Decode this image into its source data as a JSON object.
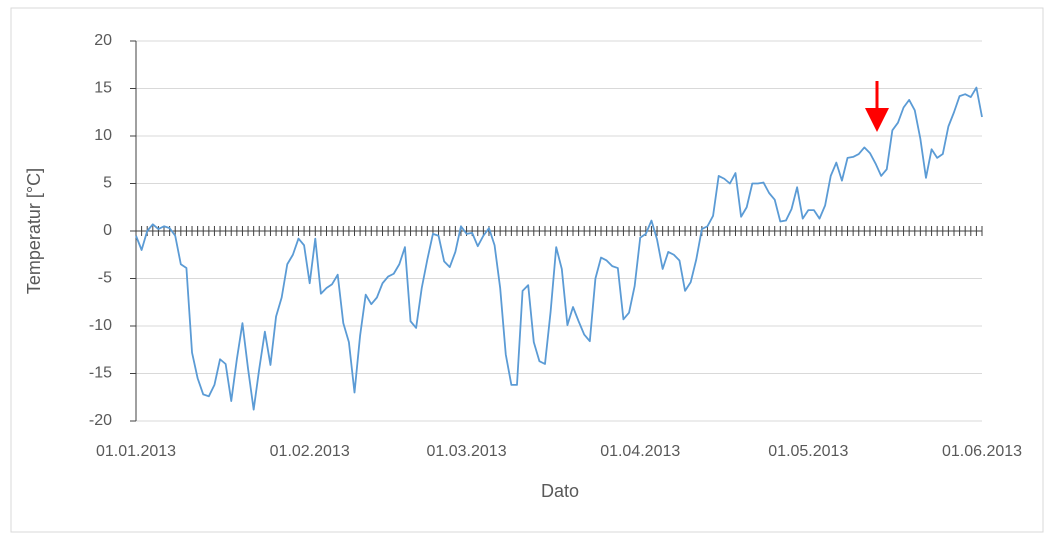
{
  "chart_data": {
    "type": "line",
    "xlabel": "Dato",
    "ylabel": "Temperatur [°C]",
    "categories": [
      "01.01.2013",
      null,
      null,
      null,
      null,
      null,
      null,
      null,
      null,
      null,
      null,
      null,
      null,
      null,
      null,
      null,
      null,
      null,
      null,
      null,
      null,
      null,
      null,
      null,
      null,
      null,
      null,
      null,
      null,
      null,
      null,
      "01.02.2013",
      null,
      null,
      null,
      null,
      null,
      null,
      null,
      null,
      null,
      null,
      null,
      null,
      null,
      null,
      null,
      null,
      null,
      null,
      null,
      null,
      null,
      null,
      null,
      null,
      null,
      null,
      null,
      "01.03.2013",
      null,
      null,
      null,
      null,
      null,
      null,
      null,
      null,
      null,
      null,
      null,
      null,
      null,
      null,
      null,
      null,
      null,
      null,
      null,
      null,
      null,
      null,
      null,
      null,
      null,
      null,
      null,
      null,
      null,
      null,
      "01.04.2013",
      null,
      null,
      null,
      null,
      null,
      null,
      null,
      null,
      null,
      null,
      null,
      null,
      null,
      null,
      null,
      null,
      null,
      null,
      null,
      null,
      null,
      null,
      null,
      null,
      null,
      null,
      null,
      null,
      null,
      "01.05.2013",
      null,
      null,
      null,
      null,
      null,
      null,
      null,
      null,
      null,
      null,
      null,
      null,
      null,
      null,
      null,
      null,
      null,
      null,
      null,
      null,
      null,
      null,
      null,
      null,
      null,
      null,
      null,
      null,
      null,
      null,
      "01.06.2013"
    ],
    "series": [
      {
        "color": "#5b9bd5",
        "values": [
          -0.5,
          -2,
          0,
          0.7,
          0.2,
          0.5,
          0.3,
          -0.5,
          -3.5,
          -3.9,
          -12.8,
          -15.5,
          -17.2,
          -17.4,
          -16.2,
          -13.5,
          -14,
          -17.9,
          -13.5,
          -9.7,
          -14.5,
          -18.8,
          -14.5,
          -10.6,
          -14.1,
          -9,
          -7,
          -3.5,
          -2.5,
          -0.8,
          -1.5,
          -5.5,
          -0.8,
          -6.6,
          -6,
          -5.6,
          -4.6,
          -9.7,
          -11.7,
          -17,
          -11,
          -6.7,
          -7.7,
          -7,
          -5.5,
          -4.8,
          -4.5,
          -3.5,
          -1.7,
          -9.5,
          -10.2,
          -6,
          -3,
          -0.3,
          -0.5,
          -3.2,
          -3.8,
          -2.2,
          0.5,
          -0.3,
          -0.2,
          -1.6,
          -0.5,
          0.3,
          -1.5,
          -6,
          -13,
          -16.2,
          -16.2,
          -6.3,
          -5.7,
          -11.7,
          -13.7,
          -14,
          -8.5,
          -1.7,
          -4,
          -9.9,
          -8,
          -9.5,
          -10.9,
          -11.6,
          -5,
          -2.8,
          -3.1,
          -3.7,
          -3.9,
          -9.3,
          -8.6,
          -5.8,
          -0.7,
          -0.3,
          1.1,
          -0.9,
          -4,
          -2.2,
          -2.5,
          -3.1,
          -6.3,
          -5.4,
          -3,
          0.2,
          0.5,
          1.6,
          5.8,
          5.5,
          5,
          6.1,
          1.5,
          2.5,
          5,
          5,
          5.1,
          4,
          3.3,
          1,
          1.1,
          2.3,
          4.6,
          1.3,
          2.2,
          2.2,
          1.3,
          2.7,
          5.8,
          7.2,
          5.3,
          7.7,
          7.8,
          8.1,
          8.8,
          8.2,
          7.1,
          5.8,
          6.5,
          10.6,
          11.4,
          13,
          13.8,
          12.7,
          9.7,
          5.6,
          8.6,
          7.7,
          8.1,
          11,
          12.5,
          14.2,
          14.4,
          14.1,
          15.1,
          12
        ]
      }
    ],
    "ylim": [
      -20,
      20
    ],
    "yticks": [
      -20,
      -15,
      -10,
      -5,
      0,
      5,
      10,
      15,
      20
    ],
    "grid": true
  }
}
